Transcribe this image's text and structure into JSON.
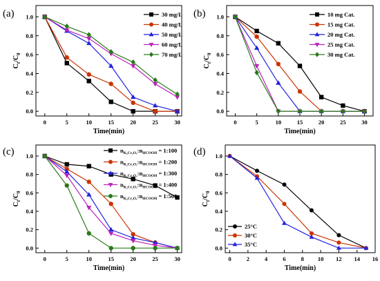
{
  "chart_data": [
    {
      "type": "line",
      "panel_label": "(a)",
      "xlabel": "Time(min)",
      "ylabel": "Ct/C0",
      "xlim": [
        -2,
        31
      ],
      "ylim": [
        -0.05,
        1.12
      ],
      "xticks": [
        0,
        5,
        10,
        15,
        20,
        25,
        30
      ],
      "yticks": [
        0.0,
        0.2,
        0.4,
        0.6,
        0.8,
        1.0
      ],
      "legend_position": "top-right",
      "series": [
        {
          "name": "30 mg/L",
          "color": "#000000",
          "marker": "square",
          "x": [
            0,
            5,
            10,
            15,
            20,
            25,
            30
          ],
          "y": [
            1.0,
            0.51,
            0.32,
            0.1,
            0.0,
            0.0,
            0.0
          ]
        },
        {
          "name": "40 mg/L",
          "color": "#cc3300",
          "marker": "circle",
          "x": [
            0,
            5,
            10,
            15,
            20,
            25,
            30
          ],
          "y": [
            1.0,
            0.57,
            0.39,
            0.29,
            0.09,
            0.0,
            0.0
          ]
        },
        {
          "name": "50 mg/L",
          "color": "#2222dd",
          "marker": "triangle-up",
          "x": [
            0,
            5,
            10,
            15,
            20,
            25,
            30
          ],
          "y": [
            1.0,
            0.85,
            0.72,
            0.48,
            0.15,
            0.06,
            0.0
          ]
        },
        {
          "name": "60 mg/L",
          "color": "#bb22bb",
          "marker": "triangle-down",
          "x": [
            0,
            5,
            10,
            15,
            20,
            25,
            30
          ],
          "y": [
            1.0,
            0.86,
            0.77,
            0.61,
            0.48,
            0.29,
            0.15
          ]
        },
        {
          "name": "70 mg/L",
          "color": "#2a7a1a",
          "marker": "diamond",
          "x": [
            0,
            5,
            10,
            15,
            20,
            25,
            30
          ],
          "y": [
            1.0,
            0.9,
            0.81,
            0.63,
            0.52,
            0.33,
            0.18
          ]
        }
      ]
    },
    {
      "type": "line",
      "panel_label": "(b)",
      "xlabel": "Time(min)",
      "ylabel": "Ct/C0",
      "xlim": [
        -2,
        32
      ],
      "ylim": [
        -0.05,
        1.12
      ],
      "xticks": [
        0,
        5,
        10,
        15,
        20,
        25,
        30
      ],
      "yticks": [
        0.0,
        0.2,
        0.4,
        0.6,
        0.8,
        1.0
      ],
      "legend_position": "top-right",
      "series": [
        {
          "name": "10 mg Cat.",
          "color": "#000000",
          "marker": "square",
          "x": [
            0,
            5,
            10,
            15,
            20,
            25,
            30
          ],
          "y": [
            1.0,
            0.85,
            0.72,
            0.48,
            0.15,
            0.06,
            0.0
          ]
        },
        {
          "name": "15 mg Cat.",
          "color": "#cc3300",
          "marker": "circle",
          "x": [
            0,
            5,
            10,
            15,
            20,
            25,
            30
          ],
          "y": [
            1.0,
            0.79,
            0.5,
            0.21,
            0.0,
            0.0,
            0.0
          ]
        },
        {
          "name": "20 mg Cat.",
          "color": "#2222dd",
          "marker": "triangle-up",
          "x": [
            0,
            5,
            10,
            15,
            20,
            25,
            30
          ],
          "y": [
            1.0,
            0.67,
            0.3,
            0.0,
            0.0,
            0.0,
            0.0
          ]
        },
        {
          "name": "25 mg Cat.",
          "color": "#bb22bb",
          "marker": "triangle-down",
          "x": [
            0,
            5,
            10,
            15,
            20,
            25,
            30
          ],
          "y": [
            1.0,
            0.48,
            0.0,
            0.0,
            0.0,
            0.0,
            0.0
          ]
        },
        {
          "name": "30 mg Cat.",
          "color": "#2a7a1a",
          "marker": "diamond",
          "x": [
            0,
            5,
            10,
            15,
            20,
            25,
            30
          ],
          "y": [
            1.0,
            0.41,
            0.0,
            0.0,
            0.0,
            0.0,
            0.0
          ]
        }
      ]
    },
    {
      "type": "line",
      "panel_label": "(c)",
      "xlabel": "Time(min)",
      "ylabel": "Ct/C0",
      "xlim": [
        -2,
        31
      ],
      "ylim": [
        -0.05,
        1.12
      ],
      "xticks": [
        0,
        5,
        10,
        15,
        20,
        25,
        30
      ],
      "yticks": [
        0.0,
        0.2,
        0.4,
        0.6,
        0.8,
        1.0
      ],
      "legend_position": "top-right",
      "series": [
        {
          "name_main": "n",
          "name_sub": "K₂Cr₂O₇",
          "name_mid": ":n",
          "name_sub2": "HCOOH",
          "name_ratio": " = 1:100",
          "color": "#000000",
          "marker": "square",
          "x": [
            0,
            5,
            10,
            15,
            20,
            25,
            30
          ],
          "y": [
            1.0,
            0.91,
            0.89,
            0.8,
            0.75,
            0.68,
            0.55
          ]
        },
        {
          "name_main": "n",
          "name_sub": "K₂Cr₂O₇",
          "name_mid": ":n",
          "name_sub2": "HCOOH",
          "name_ratio": " = 1:200",
          "color": "#cc3300",
          "marker": "circle",
          "x": [
            0,
            5,
            10,
            15,
            20,
            25,
            30
          ],
          "y": [
            1.0,
            0.86,
            0.72,
            0.48,
            0.15,
            0.06,
            0.0
          ]
        },
        {
          "name_main": "n",
          "name_sub": "K₂Cr₂O₇",
          "name_mid": ":n",
          "name_sub2": "HCOOH",
          "name_ratio": " = 1:300",
          "color": "#2222dd",
          "marker": "triangle-up",
          "x": [
            0,
            5,
            10,
            15,
            20,
            25,
            30
          ],
          "y": [
            1.0,
            0.83,
            0.58,
            0.2,
            0.11,
            0.06,
            0.0
          ]
        },
        {
          "name_main": "n",
          "name_sub": "K₂Cr₂O₇",
          "name_mid": ":n",
          "name_sub2": "HCOOH",
          "name_ratio": " = 1:400",
          "color": "#bb22bb",
          "marker": "triangle-down",
          "x": [
            0,
            5,
            10,
            15,
            20,
            25,
            30
          ],
          "y": [
            1.0,
            0.79,
            0.44,
            0.16,
            0.08,
            0.03,
            0.0
          ]
        },
        {
          "name_main": "n",
          "name_sub": "K₂Cr₂O₇",
          "name_mid": ":n",
          "name_sub2": "HCOOH",
          "name_ratio": " = 1:500",
          "color": "#2a7a1a",
          "marker": "circle",
          "x": [
            0,
            5,
            10,
            15,
            20,
            25,
            30
          ],
          "y": [
            1.0,
            0.68,
            0.16,
            0.0,
            0.0,
            0.0,
            0.0
          ]
        }
      ]
    },
    {
      "type": "line",
      "panel_label": "(d)",
      "xlabel": "Time(min)",
      "ylabel": "Ct/C0",
      "xlim": [
        -0.5,
        16
      ],
      "ylim": [
        -0.05,
        1.12
      ],
      "xticks": [
        0,
        2,
        4,
        6,
        8,
        10,
        12,
        14,
        16
      ],
      "yticks": [
        0.0,
        0.2,
        0.4,
        0.6,
        0.8,
        1.0
      ],
      "legend_position": "bottom-left",
      "series": [
        {
          "name": "25°C",
          "color": "#000000",
          "marker": "circle",
          "x": [
            0,
            3,
            6,
            9,
            12,
            15
          ],
          "y": [
            1.0,
            0.84,
            0.69,
            0.41,
            0.14,
            0.0
          ]
        },
        {
          "name": "30°C",
          "color": "#cc3300",
          "marker": "circle",
          "x": [
            0,
            3,
            6,
            9,
            12,
            15
          ],
          "y": [
            1.0,
            0.78,
            0.48,
            0.16,
            0.06,
            0.0
          ]
        },
        {
          "name": "35°C",
          "color": "#2222dd",
          "marker": "triangle-up",
          "x": [
            0,
            3,
            6,
            9,
            12,
            15
          ],
          "y": [
            1.0,
            0.76,
            0.27,
            0.12,
            0.0,
            0.0
          ]
        }
      ]
    }
  ]
}
